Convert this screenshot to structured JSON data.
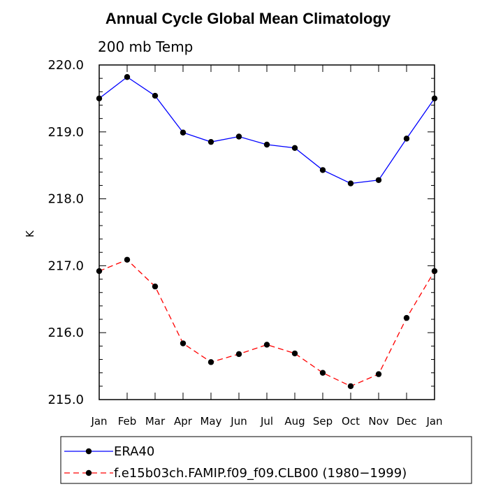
{
  "chart_data": {
    "type": "line",
    "title": "Annual Cycle Global Mean Climatology",
    "subtitle": "200 mb Temp",
    "xlabel": "",
    "ylabel": "K",
    "categories": [
      "Jan",
      "Feb",
      "Mar",
      "Apr",
      "May",
      "Jun",
      "Jul",
      "Aug",
      "Sep",
      "Oct",
      "Nov",
      "Dec",
      "Jan"
    ],
    "ylim": [
      215.0,
      220.0
    ],
    "yticks": [
      215.0,
      216.0,
      217.0,
      218.0,
      219.0,
      220.0
    ],
    "ytick_labels": [
      "215.0",
      "216.0",
      "217.0",
      "218.0",
      "219.0",
      "220.0"
    ],
    "series": [
      {
        "name": "ERA40",
        "color": "#0000ff",
        "dash": "solid",
        "values": [
          219.5,
          219.82,
          219.54,
          218.99,
          218.85,
          218.93,
          218.81,
          218.76,
          218.43,
          218.23,
          218.28,
          218.9,
          219.5
        ]
      },
      {
        "name": "f.e15b03ch.FAMIP.f09_f09.CLB00 (1980−1999)",
        "color": "#ff0000",
        "dash": "dashed",
        "values": [
          216.92,
          217.09,
          216.69,
          215.84,
          215.56,
          215.68,
          215.82,
          215.69,
          215.4,
          215.2,
          215.38,
          216.22,
          216.92
        ]
      }
    ],
    "legend_position": "bottom-left"
  }
}
